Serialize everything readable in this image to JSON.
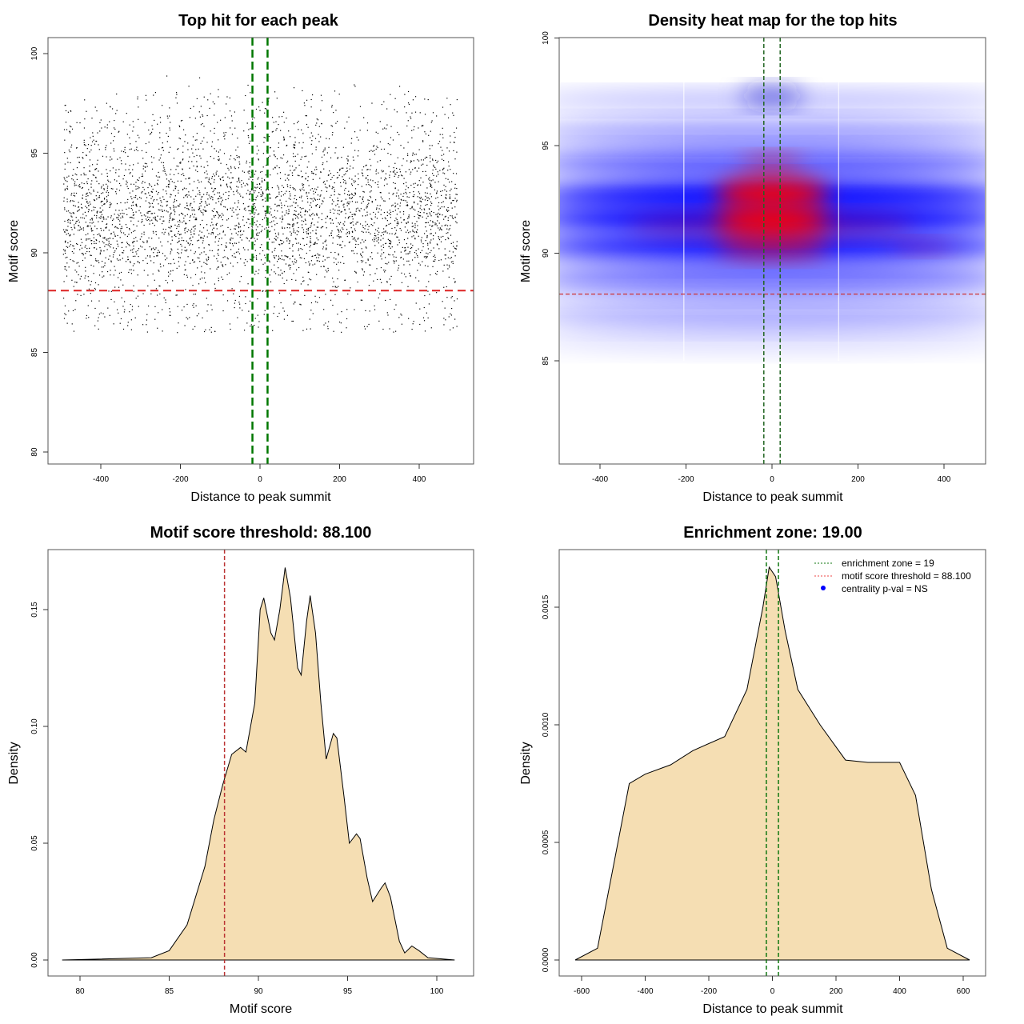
{
  "chart_data": [
    {
      "type": "scatter",
      "title": "Top hit for each peak",
      "xlabel": "Distance to peak summit",
      "ylabel": "Motif score",
      "xlim": [
        -500,
        500
      ],
      "ylim": [
        80,
        100
      ],
      "xticks": [
        "-400",
        "-200",
        "0",
        "200",
        "400"
      ],
      "yticks": [
        "80",
        "85",
        "90",
        "95",
        "100"
      ],
      "hlines": [
        {
          "y": 88.1,
          "color": "#dd2222",
          "style": "dashed"
        }
      ],
      "vlines": [
        {
          "x": -19,
          "color": "#007700",
          "style": "dashed"
        },
        {
          "x": 19,
          "color": "#007700",
          "style": "dashed"
        }
      ],
      "points_summary": {
        "n": 4000,
        "x_range": [
          -500,
          500
        ],
        "score_modes": [
          90.2,
          91.6,
          92.9,
          94.2,
          95.6,
          97.1
        ]
      }
    },
    {
      "type": "heatmap",
      "title": "Density heat map for the top hits",
      "xlabel": "Distance to peak summit",
      "ylabel": "Motif score",
      "xlim": [
        -500,
        500
      ],
      "ylim": [
        80.3,
        100
      ],
      "xticks": [
        "-400",
        "-200",
        "0",
        "200",
        "400"
      ],
      "yticks": [
        "85",
        "90",
        "95",
        "100"
      ],
      "hlines": [
        {
          "y": 88.1,
          "color": "#cc3333",
          "style": "dashed"
        }
      ],
      "vlines": [
        {
          "x": -19,
          "color": "#226622",
          "style": "dashed"
        },
        {
          "x": 19,
          "color": "#226622",
          "style": "dashed"
        }
      ],
      "hotspots": [
        {
          "x": 0,
          "y": 92.8
        },
        {
          "x": 0,
          "y": 91.5
        },
        {
          "x": 0,
          "y": 90.3
        },
        {
          "x": 0,
          "y": 94.2
        }
      ]
    },
    {
      "type": "area",
      "title": "Motif score threshold: 88.100",
      "xlabel": "Motif score",
      "ylabel": "Density",
      "xlim": [
        79,
        101
      ],
      "ylim": [
        0,
        0.17
      ],
      "xticks": [
        "80",
        "85",
        "90",
        "95",
        "100"
      ],
      "yticks": [
        "0.00",
        "0.05",
        "0.10",
        "0.15"
      ],
      "vlines": [
        {
          "x": 88.1,
          "color": "#bb3333",
          "style": "dashed"
        }
      ],
      "fill": "#f5deb3",
      "x": [
        79,
        84,
        85,
        86,
        87,
        87.5,
        88,
        88.5,
        89,
        89.3,
        89.8,
        90.1,
        90.3,
        90.7,
        90.9,
        91.2,
        91.5,
        91.8,
        92.2,
        92.4,
        92.7,
        92.9,
        93.2,
        93.5,
        93.8,
        94.2,
        94.4,
        94.8,
        95.1,
        95.5,
        95.7,
        96.1,
        96.4,
        96.9,
        97.1,
        97.4,
        97.9,
        98.2,
        98.6,
        99,
        99.5,
        101
      ],
      "y": [
        0,
        0.001,
        0.004,
        0.015,
        0.04,
        0.06,
        0.075,
        0.088,
        0.091,
        0.089,
        0.11,
        0.15,
        0.155,
        0.14,
        0.137,
        0.15,
        0.168,
        0.155,
        0.125,
        0.122,
        0.145,
        0.156,
        0.14,
        0.11,
        0.086,
        0.097,
        0.095,
        0.07,
        0.05,
        0.054,
        0.052,
        0.035,
        0.025,
        0.031,
        0.033,
        0.027,
        0.008,
        0.003,
        0.006,
        0.004,
        0.001,
        0
      ]
    },
    {
      "type": "area",
      "title": "Enrichment zone: 19.00",
      "xlabel": "Distance to peak summit",
      "ylabel": "Density",
      "xlim": [
        -630,
        670
      ],
      "ylim": [
        0,
        0.0017
      ],
      "xticks": [
        "-600",
        "-400",
        "-200",
        "0",
        "200",
        "400",
        "600"
      ],
      "yticks": [
        "0.0000",
        "0.0005",
        "0.0010",
        "0.0015"
      ],
      "vlines": [
        {
          "x": -19,
          "color": "#117711",
          "style": "dashed"
        },
        {
          "x": 19,
          "color": "#117711",
          "style": "dashed"
        }
      ],
      "fill": "#f5deb3",
      "x": [
        -620,
        -550,
        -500,
        -450,
        -400,
        -320,
        -250,
        -150,
        -80,
        -30,
        -10,
        10,
        40,
        80,
        150,
        230,
        300,
        400,
        450,
        500,
        550,
        620
      ],
      "y": [
        0,
        5e-05,
        0.0004,
        0.00075,
        0.00079,
        0.00083,
        0.00089,
        0.00095,
        0.00115,
        0.0015,
        0.00167,
        0.00163,
        0.0014,
        0.00115,
        0.001,
        0.00085,
        0.00084,
        0.00084,
        0.0007,
        0.0003,
        5e-05,
        0
      ],
      "legend": {
        "position": "top-right",
        "entries": [
          {
            "label": "enrichment zone = 19",
            "color": "#117711",
            "kind": "dotted-line"
          },
          {
            "label": "motif score threshold = 88.100",
            "color": "#ee4444",
            "kind": "dotted-line"
          },
          {
            "label": "centrality p-val = NS",
            "color": "#0000ff",
            "kind": "point"
          }
        ]
      }
    }
  ]
}
